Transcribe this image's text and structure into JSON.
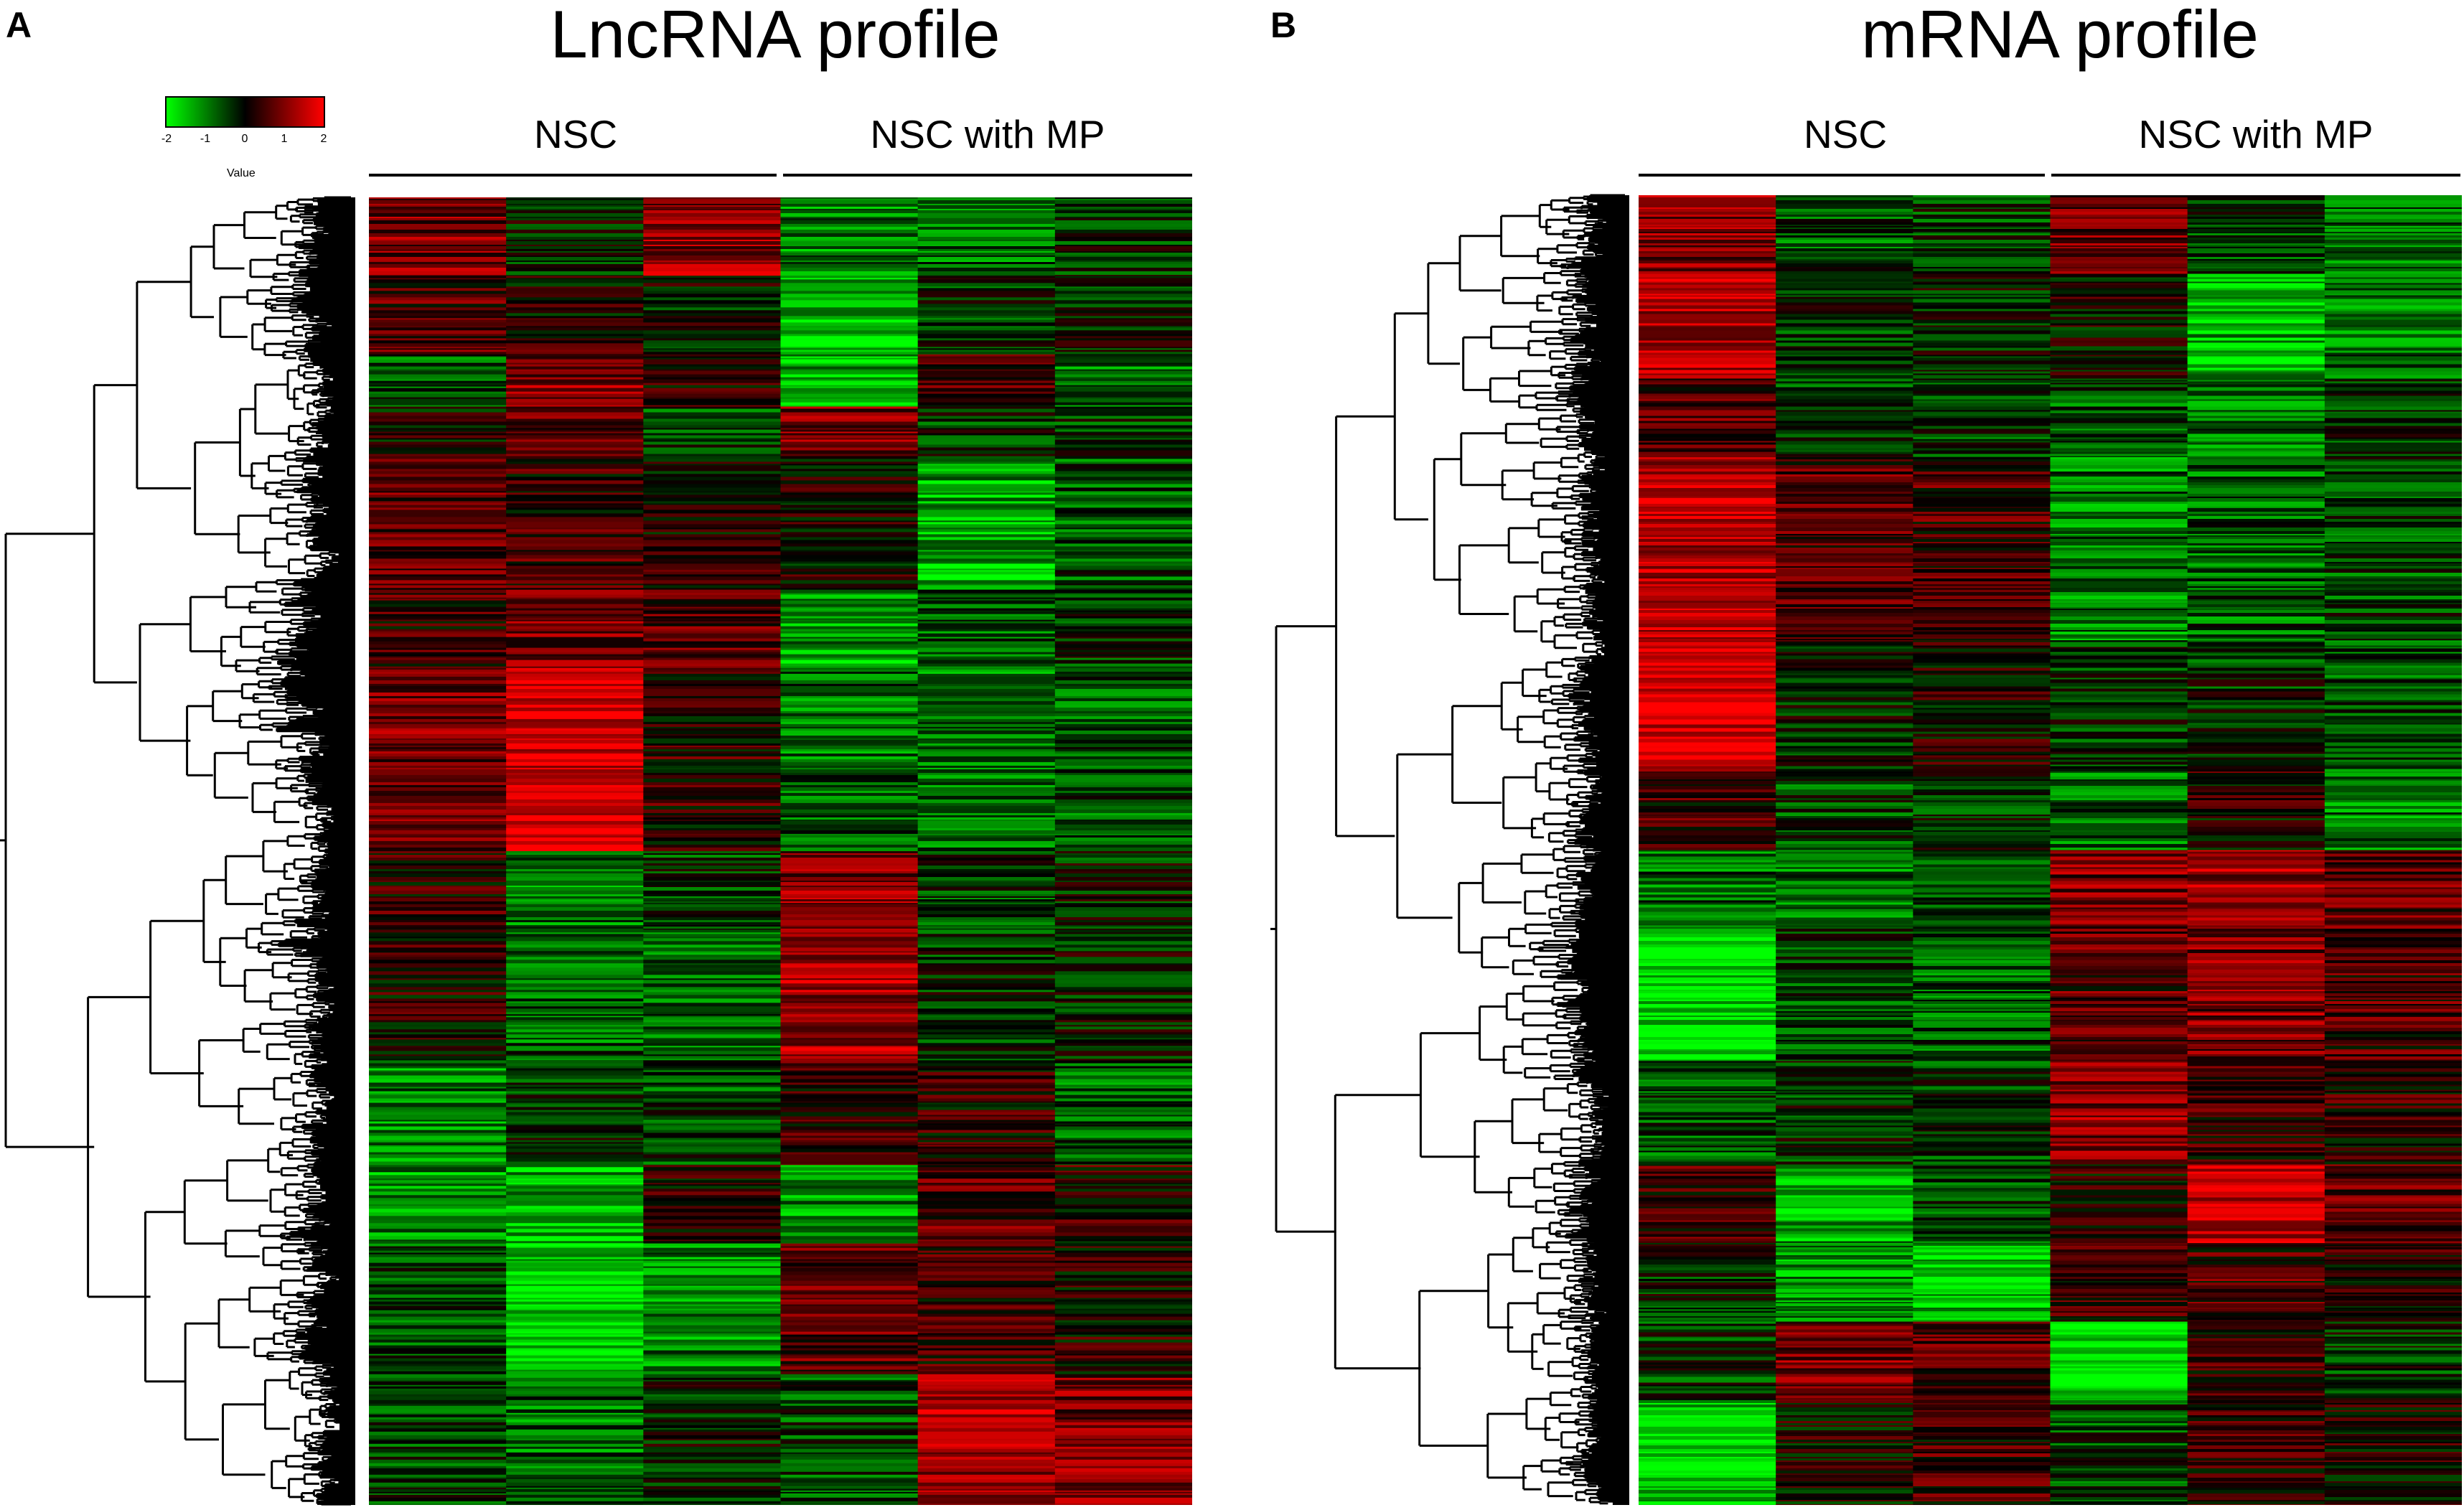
{
  "panels": [
    {
      "letter": "A",
      "title": "LncRNA profile",
      "groups": [
        "NSC",
        "NSC with MP"
      ],
      "columns_per_group": 3
    },
    {
      "letter": "B",
      "title": "mRNA profile",
      "groups": [
        "NSC",
        "NSC with MP"
      ],
      "columns_per_group": 3
    }
  ],
  "legend": {
    "label": "Value",
    "ticks": [
      "-2",
      "-1",
      "0",
      "1",
      "2"
    ],
    "colors": {
      "low": "#00ff00",
      "mid": "#000000",
      "high": "#ff0000"
    }
  },
  "chart_data": [
    {
      "type": "heatmap",
      "title": "LncRNA profile",
      "columns": [
        "NSC",
        "NSC",
        "NSC",
        "NSC with MP",
        "NSC with MP",
        "NSC with MP"
      ],
      "value_range": [
        -2,
        2
      ],
      "colorscale": [
        "#00ff00",
        "#000000",
        "#ff0000"
      ],
      "row_dendrogram": true,
      "blocks": [
        {
          "rows": [
            0,
            0.06
          ],
          "values": [
            0.9,
            -0.2,
            1.1,
            -1.0,
            -0.8,
            -0.3
          ]
        },
        {
          "rows": [
            0.06,
            0.12
          ],
          "values": [
            0.5,
            0.2,
            -0.1,
            -1.5,
            -0.4,
            -0.2
          ]
        },
        {
          "rows": [
            0.12,
            0.16
          ],
          "values": [
            -0.6,
            1.0,
            0.3,
            -1.4,
            0.5,
            -0.9
          ]
        },
        {
          "rows": [
            0.16,
            0.2
          ],
          "values": [
            0.1,
            0.8,
            -0.5,
            0.9,
            -0.3,
            -0.4
          ]
        },
        {
          "rows": [
            0.2,
            0.3
          ],
          "values": [
            0.7,
            0.4,
            0.2,
            0.1,
            -1.3,
            -0.6
          ]
        },
        {
          "rows": [
            0.3,
            0.36
          ],
          "values": [
            0.4,
            0.9,
            0.6,
            -1.2,
            -0.7,
            -0.3
          ]
        },
        {
          "rows": [
            0.36,
            0.5
          ],
          "values": [
            0.9,
            1.7,
            0.3,
            -0.8,
            -0.9,
            -0.6
          ]
        },
        {
          "rows": [
            0.5,
            0.56
          ],
          "values": [
            0.3,
            -0.9,
            -0.4,
            1.0,
            -0.5,
            -0.2
          ]
        },
        {
          "rows": [
            0.56,
            0.66
          ],
          "values": [
            0.2,
            -0.7,
            -0.8,
            1.2,
            -0.3,
            -0.1
          ]
        },
        {
          "rows": [
            0.66,
            0.74
          ],
          "values": [
            -1.0,
            -0.3,
            -0.5,
            0.4,
            0.3,
            -0.7
          ]
        },
        {
          "rows": [
            0.74,
            0.8
          ],
          "values": [
            -1.1,
            -1.4,
            0.2,
            -1.1,
            0.6,
            0.3
          ]
        },
        {
          "rows": [
            0.8,
            0.9
          ],
          "values": [
            -0.6,
            -1.6,
            -1.0,
            0.7,
            0.4,
            0.2
          ]
        },
        {
          "rows": [
            0.9,
            1.0
          ],
          "values": [
            -0.4,
            -0.8,
            -0.2,
            -0.5,
            1.3,
            0.9
          ]
        }
      ]
    },
    {
      "type": "heatmap",
      "title": "mRNA profile",
      "columns": [
        "NSC",
        "NSC",
        "NSC",
        "NSC with MP",
        "NSC with MP",
        "NSC with MP"
      ],
      "value_range": [
        -2,
        2
      ],
      "colorscale": [
        "#00ff00",
        "#000000",
        "#ff0000"
      ],
      "row_dendrogram": true,
      "blocks": [
        {
          "rows": [
            0,
            0.06
          ],
          "values": [
            1.0,
            -0.6,
            -0.4,
            0.8,
            -0.5,
            -0.7
          ]
        },
        {
          "rows": [
            0.06,
            0.14
          ],
          "values": [
            1.3,
            -0.3,
            -0.2,
            0.1,
            -1.4,
            -0.8
          ]
        },
        {
          "rows": [
            0.14,
            0.2
          ],
          "values": [
            0.6,
            -0.4,
            -0.5,
            -0.6,
            -0.8,
            -0.4
          ]
        },
        {
          "rows": [
            0.2,
            0.34
          ],
          "values": [
            1.4,
            0.6,
            0.5,
            -0.9,
            -0.7,
            -0.5
          ]
        },
        {
          "rows": [
            0.34,
            0.44
          ],
          "values": [
            1.7,
            -0.2,
            0.1,
            -0.4,
            -0.3,
            -0.6
          ]
        },
        {
          "rows": [
            0.44,
            0.5
          ],
          "values": [
            0.4,
            -0.5,
            -0.3,
            -0.8,
            0.2,
            -0.9
          ]
        },
        {
          "rows": [
            0.5,
            0.56
          ],
          "values": [
            -0.8,
            -0.9,
            -0.6,
            0.9,
            1.2,
            0.7
          ]
        },
        {
          "rows": [
            0.56,
            0.66
          ],
          "values": [
            -1.8,
            -0.5,
            -0.7,
            0.6,
            0.9,
            0.5
          ]
        },
        {
          "rows": [
            0.66,
            0.74
          ],
          "values": [
            -0.6,
            -0.3,
            -0.4,
            1.0,
            0.4,
            0.3
          ]
        },
        {
          "rows": [
            0.74,
            0.8
          ],
          "values": [
            0.5,
            -1.3,
            -0.6,
            0.2,
            1.5,
            0.6
          ]
        },
        {
          "rows": [
            0.8,
            0.86
          ],
          "values": [
            -0.2,
            -1.1,
            -1.5,
            0.3,
            0.5,
            0.2
          ]
        },
        {
          "rows": [
            0.86,
            0.92
          ],
          "values": [
            -0.4,
            0.9,
            0.6,
            -1.7,
            0.4,
            -0.3
          ]
        },
        {
          "rows": [
            0.92,
            1.0
          ],
          "values": [
            -1.7,
            0.1,
            0.4,
            -0.5,
            0.3,
            0.2
          ]
        }
      ]
    }
  ]
}
